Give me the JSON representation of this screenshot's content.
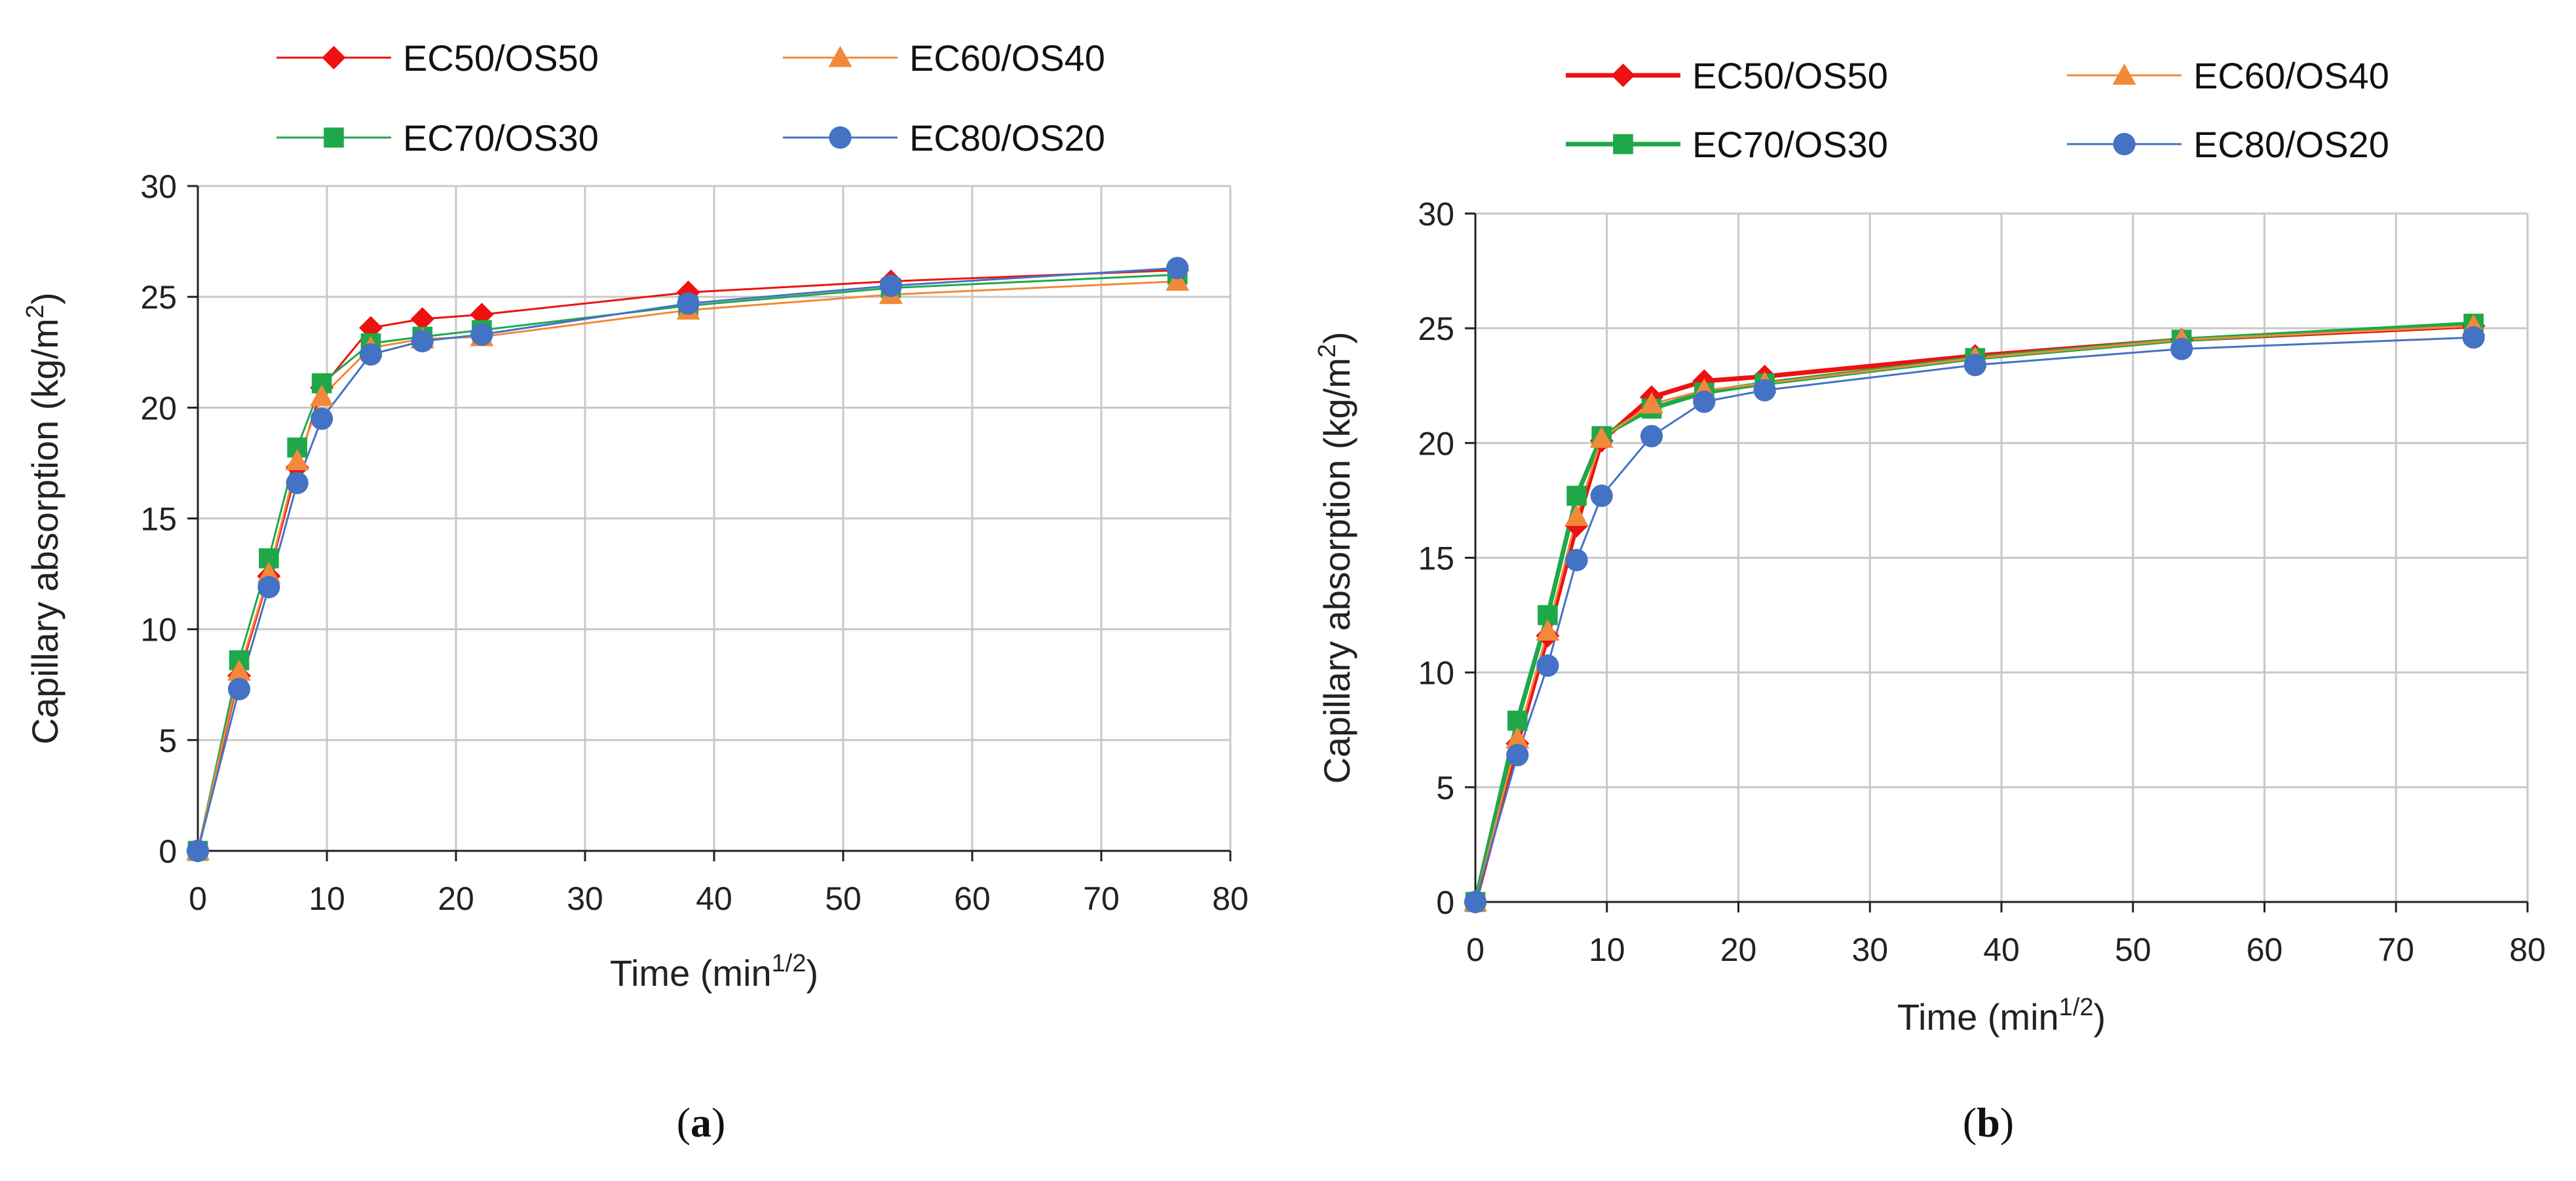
{
  "colors": {
    "EC50/OS50": "#ee1111",
    "EC60/OS40": "#f2893a",
    "EC70/OS30": "#1fa84a",
    "EC80/OS20": "#4472c4",
    "grid": "#c8c8c8",
    "axis": "#222222"
  },
  "chart_data": [
    {
      "type": "line",
      "panel_label": "a",
      "xlabel": "Time (min",
      "xlabel_sup": "1/2",
      "xlabel_end": ")",
      "ylabel": "Capillary absorption (kg/m",
      "ylabel_sup": "2",
      "ylabel_end": ")",
      "xlim": [
        0,
        80
      ],
      "ylim": [
        0,
        30
      ],
      "xticks": [
        0,
        10,
        20,
        30,
        40,
        50,
        60,
        70,
        80
      ],
      "yticks": [
        0,
        5,
        10,
        15,
        20,
        25,
        30
      ],
      "grid": true,
      "legend_placement": "top",
      "x": [
        0,
        3.2,
        5.5,
        7.7,
        9.6,
        13.4,
        17.4,
        22,
        38,
        53.7,
        75.9
      ],
      "series": [
        {
          "name": "EC50/OS50",
          "marker": "diamond",
          "values": [
            0,
            7.9,
            12.4,
            17.3,
            20.9,
            23.6,
            24.0,
            24.2,
            25.2,
            25.7,
            26.2
          ]
        },
        {
          "name": "EC60/OS40",
          "marker": "triangle",
          "values": [
            0,
            8.1,
            12.5,
            17.6,
            20.5,
            22.7,
            23.1,
            23.2,
            24.4,
            25.1,
            25.7
          ]
        },
        {
          "name": "EC70/OS30",
          "marker": "square",
          "values": [
            0,
            8.6,
            13.2,
            18.2,
            21.1,
            22.9,
            23.2,
            23.5,
            24.6,
            25.4,
            26.0
          ]
        },
        {
          "name": "EC80/OS20",
          "marker": "circle",
          "values": [
            0,
            7.3,
            11.9,
            16.6,
            19.5,
            22.4,
            23.0,
            23.3,
            24.7,
            25.5,
            26.3
          ]
        }
      ]
    },
    {
      "type": "line",
      "panel_label": "b",
      "xlabel": "Time (min",
      "xlabel_sup": "1/2",
      "xlabel_end": ")",
      "ylabel": "Capillary absorption (kg/m",
      "ylabel_sup": "2",
      "ylabel_end": ")",
      "xlim": [
        0,
        80
      ],
      "ylim": [
        0,
        30
      ],
      "xticks": [
        0,
        10,
        20,
        30,
        40,
        50,
        60,
        70,
        80
      ],
      "yticks": [
        0,
        5,
        10,
        15,
        20,
        25,
        30
      ],
      "grid": true,
      "legend_placement": "top",
      "x": [
        0,
        3.2,
        5.5,
        7.7,
        9.6,
        13.4,
        17.4,
        22,
        38,
        53.7,
        75.9
      ],
      "series": [
        {
          "name": "EC50/OS50",
          "marker": "diamond",
          "values": [
            0,
            6.9,
            11.6,
            16.4,
            20.1,
            22.0,
            22.7,
            22.9,
            23.8,
            24.5,
            25.1
          ]
        },
        {
          "name": "EC60/OS40",
          "marker": "triangle",
          "values": [
            0,
            7.1,
            11.8,
            16.8,
            20.2,
            21.7,
            22.3,
            22.6,
            23.7,
            24.5,
            25.1
          ]
        },
        {
          "name": "EC70/OS30",
          "marker": "square",
          "values": [
            0,
            7.9,
            12.5,
            17.7,
            20.3,
            21.5,
            22.2,
            22.6,
            23.7,
            24.5,
            25.2
          ]
        },
        {
          "name": "EC80/OS20",
          "marker": "circle",
          "values": [
            0,
            6.4,
            10.3,
            14.9,
            17.7,
            20.3,
            21.8,
            22.3,
            23.4,
            24.1,
            24.6
          ]
        }
      ]
    }
  ]
}
